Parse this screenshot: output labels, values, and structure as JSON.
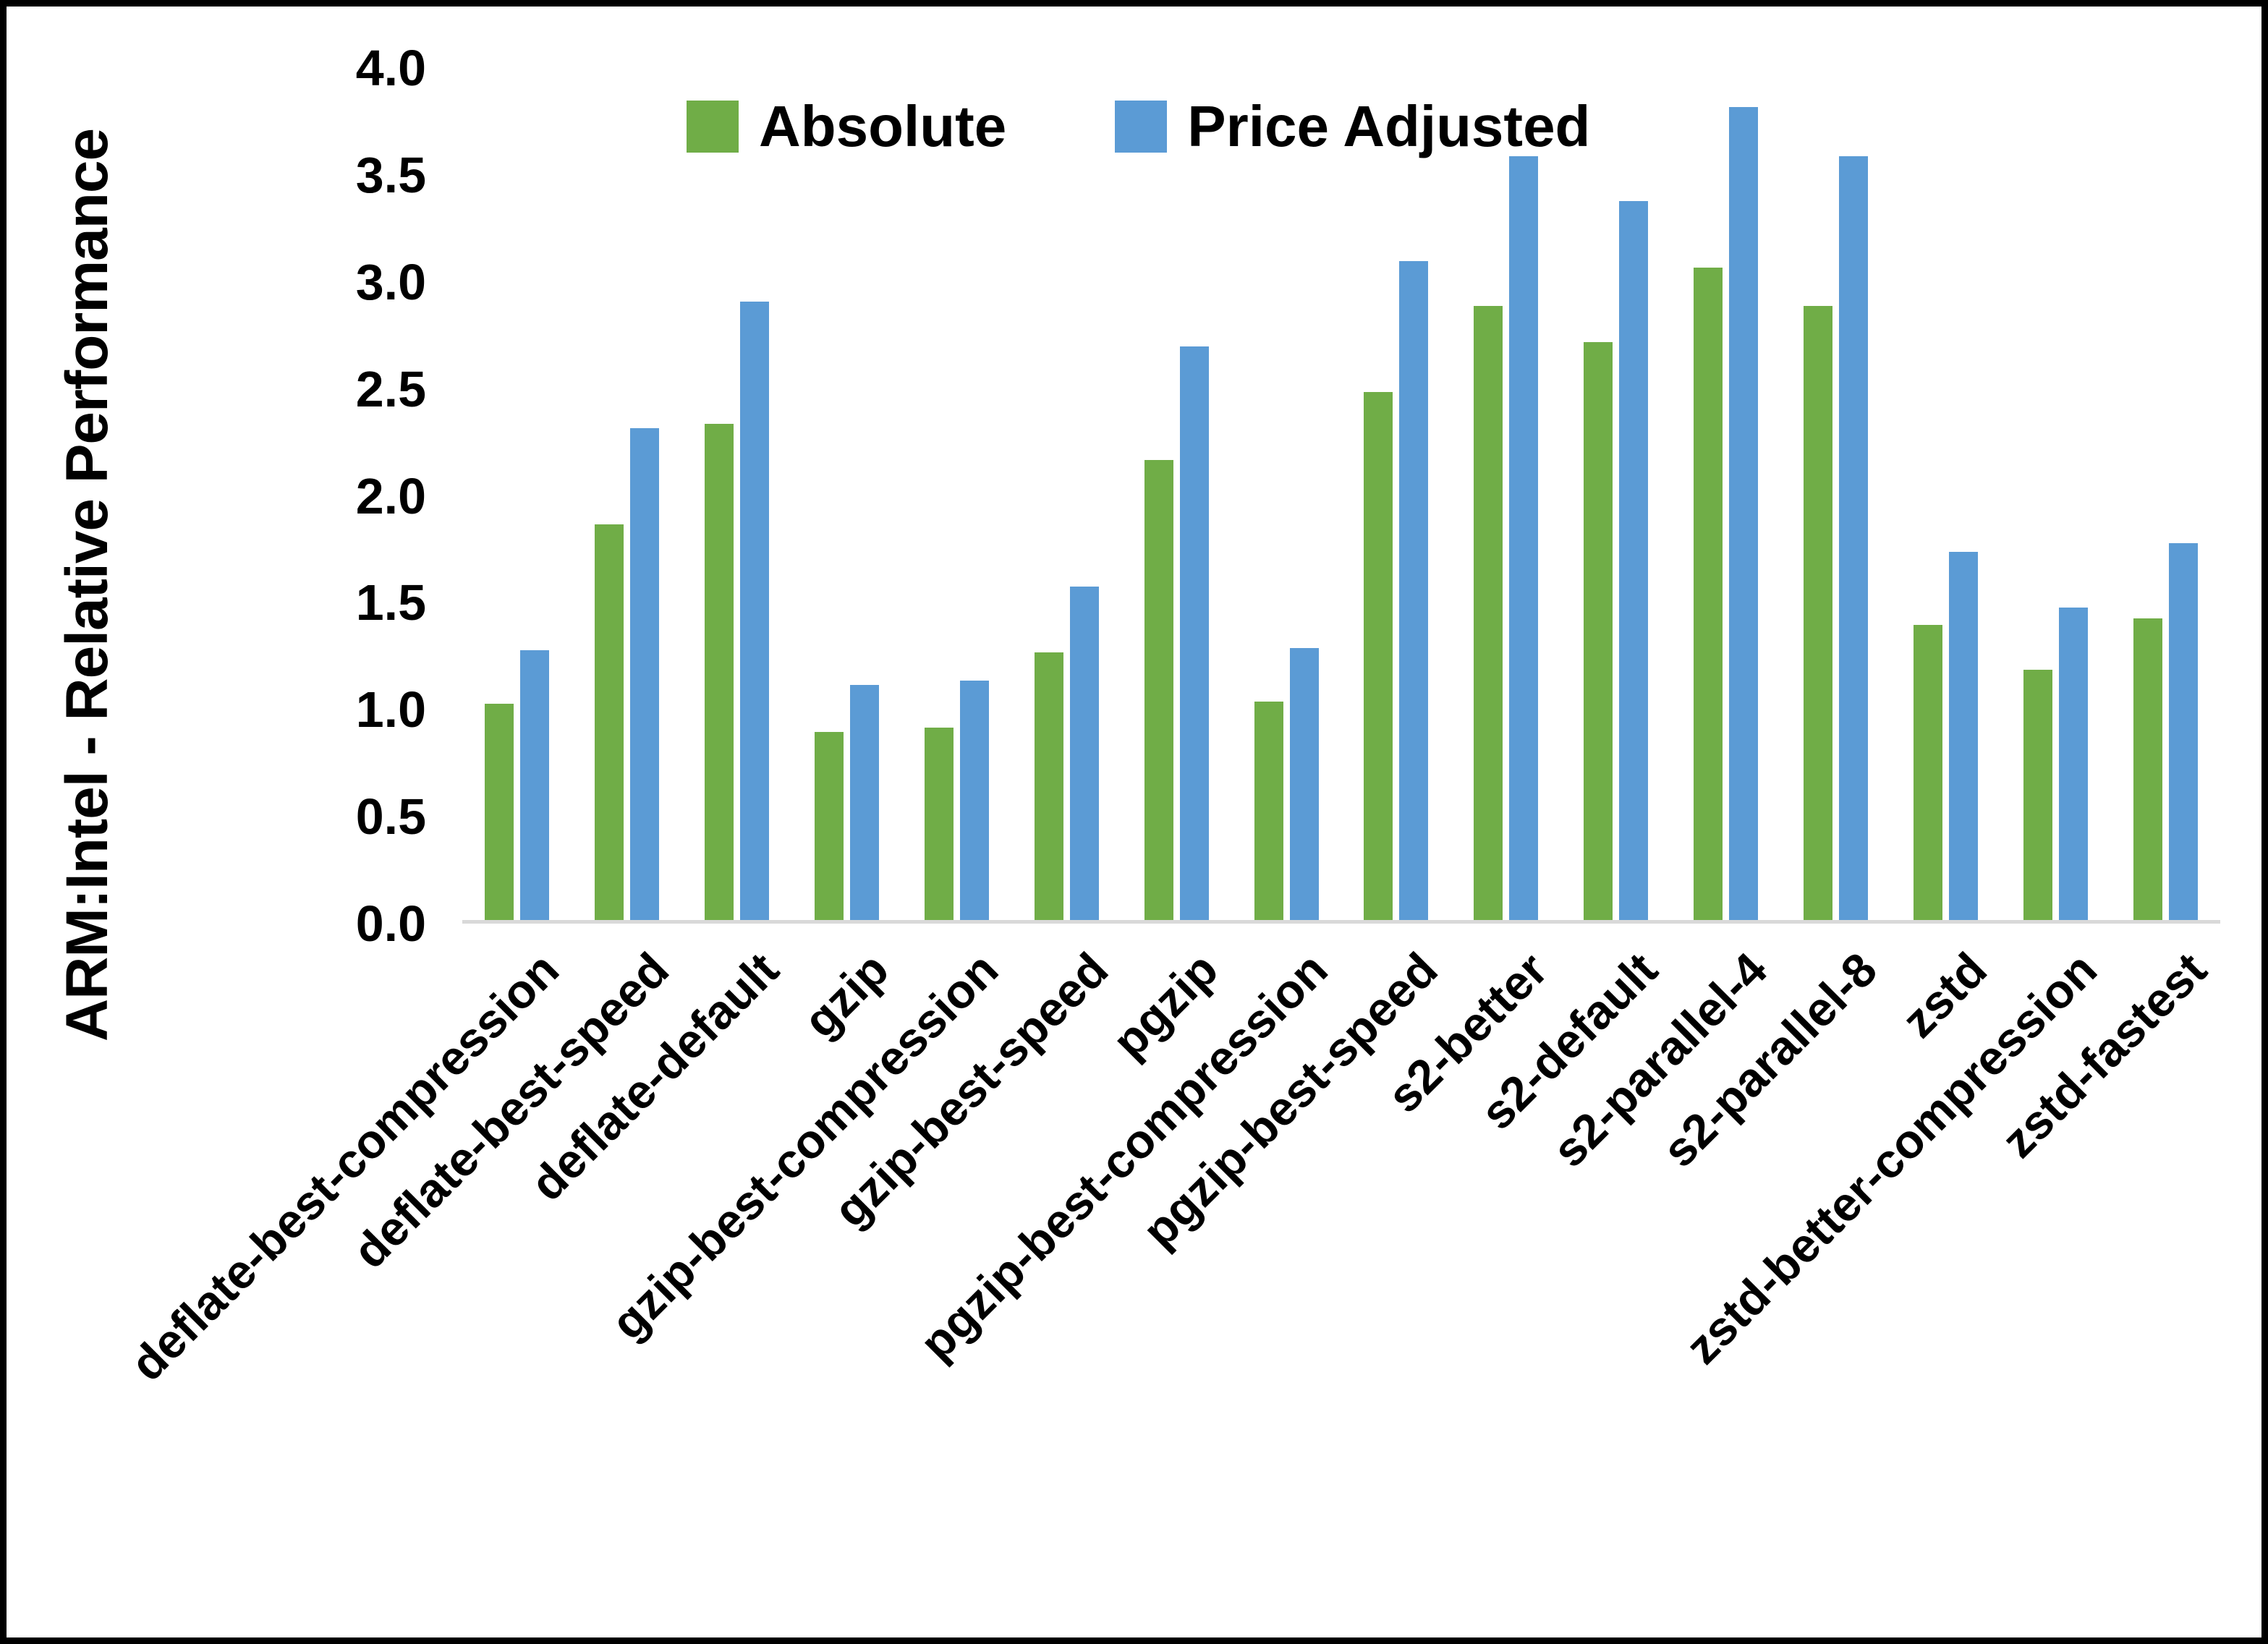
{
  "chart_data": {
    "type": "bar",
    "title": "",
    "xlabel": "",
    "ylabel": "ARM:Intel - Relative Performance",
    "ylim": [
      0,
      4.0
    ],
    "yticks": [
      0,
      0.5,
      1.0,
      1.5,
      2.0,
      2.5,
      3.0,
      3.5,
      4.0
    ],
    "ytick_labels": [
      "0.0",
      "0.5",
      "1.0",
      "1.5",
      "2.0",
      "2.5",
      "3.0",
      "3.5",
      "4.0"
    ],
    "grid": "off",
    "legend_position": "top-center",
    "baseline_color": "#D9D9D9",
    "categories": [
      "deflate-best-compression",
      "deflate-best-speed",
      "deflate-default",
      "gzip",
      "gzip-best-compression",
      "gzip-best-speed",
      "pgzip",
      "pgzip-best-compression",
      "pgzip-best-speed",
      "s2-better",
      "s2-default",
      "s2-parallel-4",
      "s2-parallel-8",
      "zstd",
      "zstd-better-compression",
      "zstd-fastest"
    ],
    "series": [
      {
        "name": "Absolute",
        "color": "#70AD47",
        "values": [
          1.01,
          1.85,
          2.32,
          0.88,
          0.9,
          1.25,
          2.15,
          1.02,
          2.47,
          2.87,
          2.7,
          3.05,
          2.87,
          1.38,
          1.17,
          1.41
        ]
      },
      {
        "name": "Price Adjusted",
        "color": "#5B9BD5",
        "values": [
          1.26,
          2.3,
          2.89,
          1.1,
          1.12,
          1.56,
          2.68,
          1.27,
          3.08,
          3.57,
          3.36,
          3.8,
          3.57,
          1.72,
          1.46,
          1.76
        ]
      }
    ]
  },
  "frame": {
    "border_color": "#000000",
    "background_color": "#FFFFFF"
  }
}
